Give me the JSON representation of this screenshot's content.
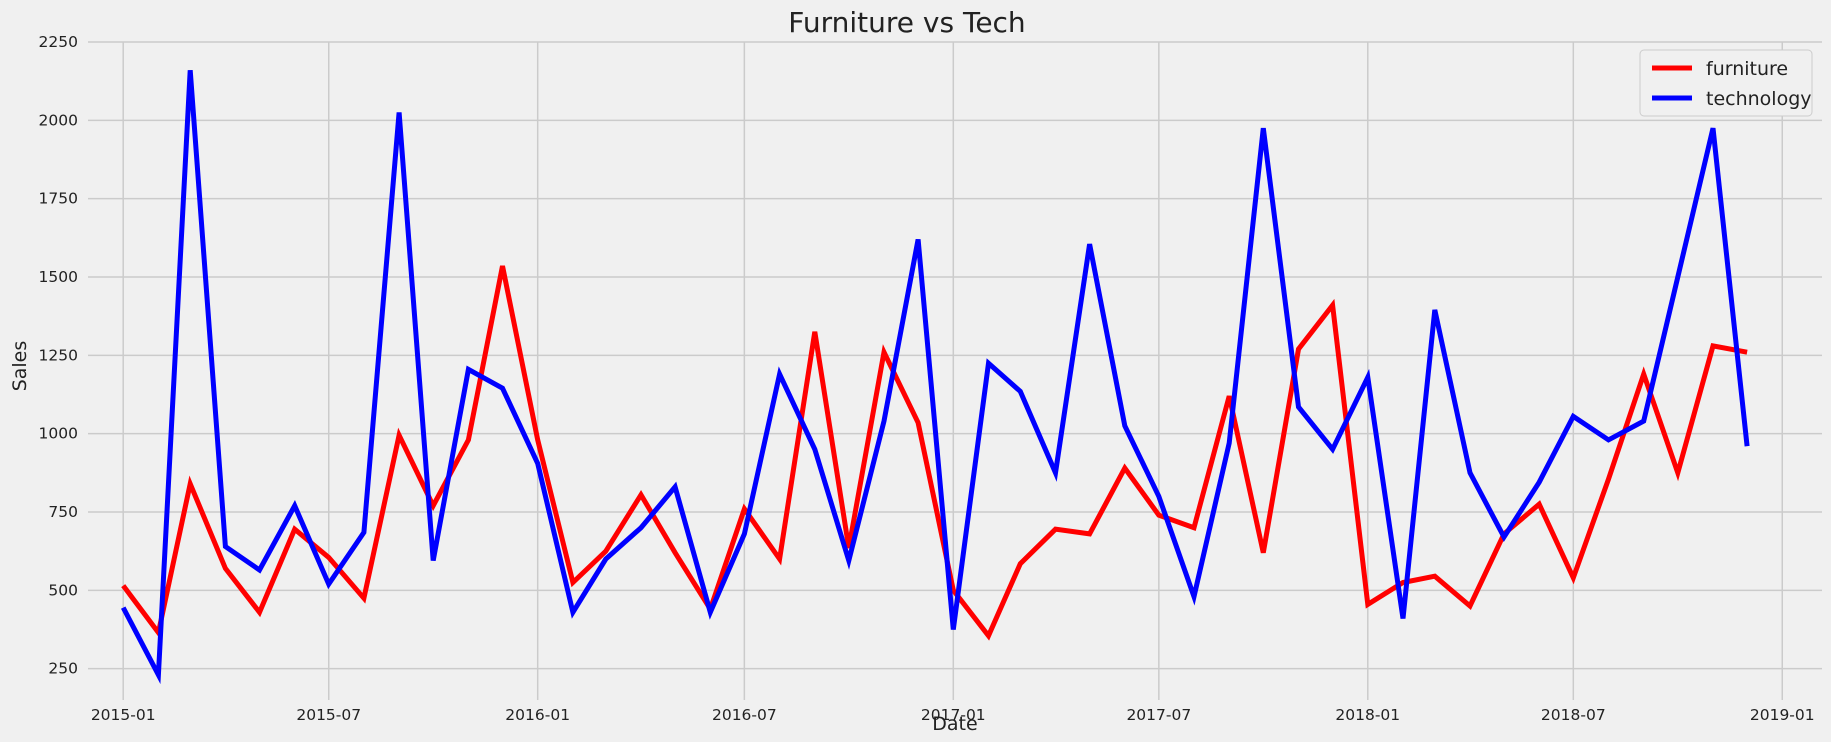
{
  "chart_data": {
    "type": "line",
    "title": "Furniture vs Tech",
    "xlabel": "Date",
    "ylabel": "Sales",
    "ylim": [
      150,
      2250
    ],
    "xlim": [
      "2014-12-01",
      "2019-02-05"
    ],
    "yticks": [
      250,
      500,
      750,
      1000,
      1250,
      1500,
      1750,
      2000,
      2250
    ],
    "xticks": [
      "2015-01",
      "2015-07",
      "2016-01",
      "2016-07",
      "2017-01",
      "2017-07",
      "2018-01",
      "2018-07",
      "2019-01"
    ],
    "grid": true,
    "legend_position": "top-right",
    "x": [
      "2015-01-01",
      "2015-02-01",
      "2015-03-01",
      "2015-04-01",
      "2015-05-01",
      "2015-06-01",
      "2015-07-01",
      "2015-08-01",
      "2015-09-01",
      "2015-10-01",
      "2015-11-01",
      "2015-12-01",
      "2016-01-01",
      "2016-02-01",
      "2016-03-01",
      "2016-04-01",
      "2016-05-01",
      "2016-06-01",
      "2016-07-01",
      "2016-08-01",
      "2016-09-01",
      "2016-10-01",
      "2016-11-01",
      "2016-12-01",
      "2017-01-01",
      "2017-02-01",
      "2017-03-01",
      "2017-04-01",
      "2017-05-01",
      "2017-06-01",
      "2017-07-01",
      "2017-08-01",
      "2017-09-01",
      "2017-10-01",
      "2017-11-01",
      "2017-12-01",
      "2018-01-01",
      "2018-02-01",
      "2018-03-01",
      "2018-04-01",
      "2018-05-01",
      "2018-06-01",
      "2018-07-01",
      "2018-08-01",
      "2018-09-01",
      "2018-10-01",
      "2018-11-01",
      "2018-12-01"
    ],
    "series": [
      {
        "name": "furniture",
        "color": "#ff0000",
        "values": [
          515,
          365,
          840,
          570,
          430,
          695,
          605,
          475,
          995,
          770,
          980,
          1535,
          980,
          525,
          625,
          805,
          620,
          440,
          760,
          600,
          1325,
          635,
          1260,
          1035,
          500,
          355,
          585,
          695,
          680,
          890,
          740,
          700,
          1120,
          620,
          1270,
          1410,
          455,
          525,
          545,
          450,
          680,
          775,
          540,
          855,
          1190,
          875,
          1280,
          1260
        ]
      },
      {
        "name": "technology",
        "color": "#0000ff",
        "values": [
          445,
          230,
          2160,
          640,
          565,
          770,
          520,
          685,
          2025,
          595,
          1205,
          1145,
          905,
          430,
          600,
          700,
          830,
          430,
          680,
          1190,
          950,
          595,
          1040,
          1620,
          375,
          1225,
          1135,
          875,
          1605,
          1025,
          800,
          480,
          970,
          1975,
          1085,
          950,
          1180,
          410,
          1395,
          875,
          670,
          845,
          1055,
          980,
          1040,
          1500,
          1975,
          960
        ]
      }
    ]
  }
}
